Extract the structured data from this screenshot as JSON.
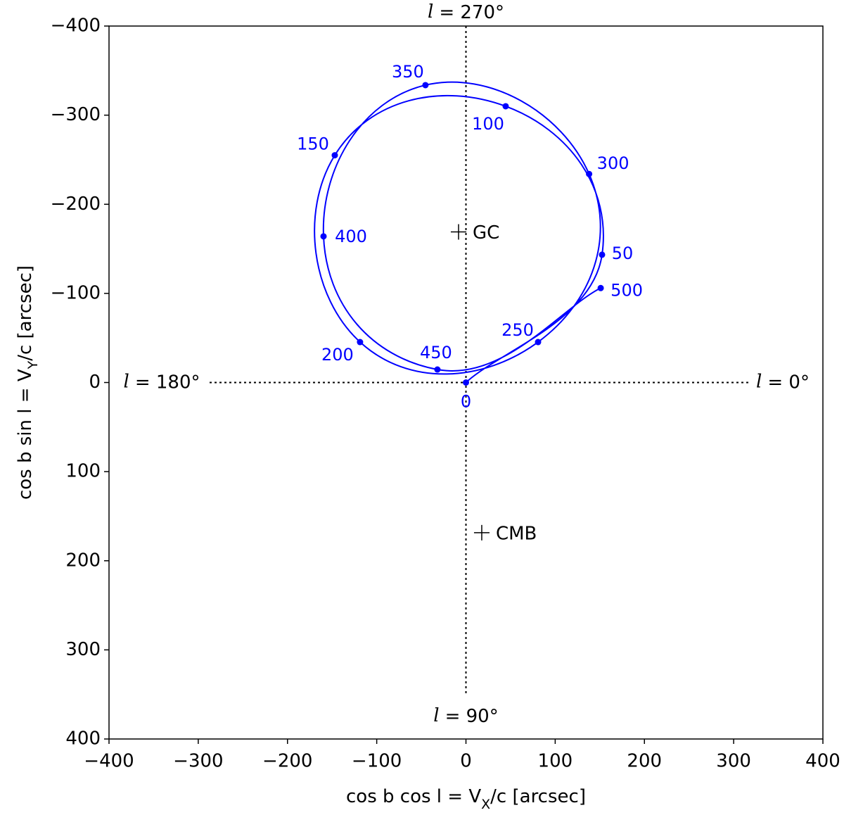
{
  "chart_data": {
    "type": "line",
    "xlabel": {
      "main": "cos b cos l = V",
      "sub": "X",
      "rest": "/c  [arcsec]"
    },
    "ylabel": {
      "main": "cos b sin l = V",
      "sub": "Y",
      "rest": "/c  [arcsec]"
    },
    "xlim": [
      -400,
      400
    ],
    "ylim": [
      400,
      -400
    ],
    "xticks": [
      {
        "value": -400,
        "label": "−400"
      },
      {
        "value": -300,
        "label": "−300"
      },
      {
        "value": -200,
        "label": "−200"
      },
      {
        "value": -100,
        "label": "−100"
      },
      0,
      100,
      200,
      300,
      400
    ],
    "yticks": [
      {
        "value": -400,
        "label": "−400"
      },
      {
        "value": -300,
        "label": "−300"
      },
      {
        "value": -200,
        "label": "−200"
      },
      {
        "value": -100,
        "label": "−100"
      },
      0,
      100,
      200,
      300,
      400
    ],
    "color": "#0000ff",
    "t": [
      0,
      50,
      100,
      150,
      200,
      250,
      300,
      350,
      400,
      450,
      500
    ],
    "x": [
      0,
      152.5,
      44.5,
      -147,
      -118.7,
      80.8,
      138,
      -45.4,
      -159.6,
      -32,
      151
    ],
    "y": [
      0,
      -143.4,
      -310,
      -255,
      -45.4,
      -45.4,
      -234,
      -333.7,
      -164,
      -14.6,
      -106
    ],
    "markers": [
      {
        "label": "GC",
        "x": -8.3,
        "y": -169
      },
      {
        "label": "CMB",
        "x": 17.7,
        "y": 168.5
      }
    ],
    "direction_labels": [
      {
        "symbol": "l",
        "text": "= 270°"
      },
      {
        "symbol": "l",
        "text": "= 180°"
      },
      {
        "symbol": "l",
        "text": "= 0°"
      },
      {
        "symbol": "l",
        "text": "= 90°"
      }
    ]
  }
}
